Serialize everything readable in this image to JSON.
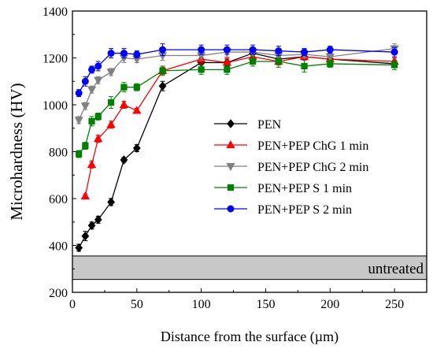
{
  "chart_data": {
    "type": "line",
    "xlabel": "Distance from the surface (µm)",
    "ylabel": "Microhardness (HV)",
    "xlim": [
      0,
      275
    ],
    "ylim": [
      200,
      1400
    ],
    "xticks": [
      0,
      50,
      100,
      150,
      200,
      250
    ],
    "yticks": [
      200,
      400,
      600,
      800,
      1000,
      1200,
      1400
    ],
    "legend_position": "center-right",
    "untreated_band": {
      "label": "untreated",
      "y_range": [
        255,
        355
      ],
      "color": "#c8c8c8"
    },
    "series": [
      {
        "name": "PEN",
        "color": "#000000",
        "marker": "diamond",
        "x": [
          5,
          10,
          15,
          20,
          30,
          40,
          50,
          70,
          100,
          120,
          140,
          160,
          180,
          200,
          250
        ],
        "y": [
          390,
          440,
          485,
          510,
          585,
          765,
          815,
          1080,
          1180,
          1180,
          1220,
          1195,
          1205,
          1195,
          1175
        ],
        "err": [
          15,
          20,
          15,
          15,
          15,
          10,
          15,
          20,
          20,
          15,
          15,
          15,
          15,
          15,
          15
        ]
      },
      {
        "name": "PEN+PEP ChG 1 min",
        "color": "#ff0000",
        "marker": "triangle-up",
        "x": [
          10,
          15,
          20,
          30,
          40,
          50,
          70,
          100,
          120,
          140,
          160,
          180,
          200,
          250
        ],
        "y": [
          610,
          745,
          855,
          915,
          1000,
          975,
          1145,
          1195,
          1180,
          1205,
          1185,
          1205,
          1195,
          1185
        ],
        "err": [
          10,
          15,
          15,
          15,
          15,
          10,
          15,
          20,
          20,
          15,
          15,
          15,
          15,
          15
        ]
      },
      {
        "name": "PEN+PEP ChG 2 min",
        "color": "#808080",
        "marker": "triangle-down",
        "x": [
          5,
          10,
          15,
          20,
          30,
          40,
          50,
          70,
          100,
          120,
          140,
          160,
          180,
          200,
          250
        ],
        "y": [
          935,
          995,
          1065,
          1105,
          1140,
          1200,
          1195,
          1210,
          1210,
          1225,
          1225,
          1210,
          1215,
          1205,
          1240
        ],
        "err": [
          15,
          15,
          15,
          15,
          15,
          20,
          15,
          20,
          20,
          20,
          15,
          15,
          15,
          15,
          20
        ]
      },
      {
        "name": "PEN+PEP S 1 min",
        "color": "#008000",
        "marker": "square",
        "x": [
          5,
          10,
          15,
          20,
          30,
          40,
          50,
          70,
          100,
          120,
          140,
          160,
          180,
          200,
          250
        ],
        "y": [
          790,
          825,
          930,
          950,
          1010,
          1075,
          1075,
          1145,
          1150,
          1150,
          1185,
          1185,
          1165,
          1175,
          1170
        ],
        "err": [
          15,
          15,
          20,
          15,
          25,
          20,
          15,
          20,
          20,
          20,
          20,
          25,
          25,
          15,
          20
        ]
      },
      {
        "name": "PEN+PEP S 2 min",
        "color": "#0000ff",
        "marker": "circle",
        "x": [
          5,
          10,
          15,
          20,
          30,
          40,
          50,
          70,
          100,
          120,
          140,
          160,
          180,
          200,
          250
        ],
        "y": [
          1050,
          1100,
          1150,
          1165,
          1220,
          1220,
          1215,
          1235,
          1235,
          1235,
          1235,
          1230,
          1225,
          1235,
          1225
        ],
        "err": [
          15,
          20,
          15,
          20,
          20,
          20,
          15,
          25,
          20,
          20,
          20,
          20,
          15,
          15,
          20
        ]
      }
    ]
  }
}
